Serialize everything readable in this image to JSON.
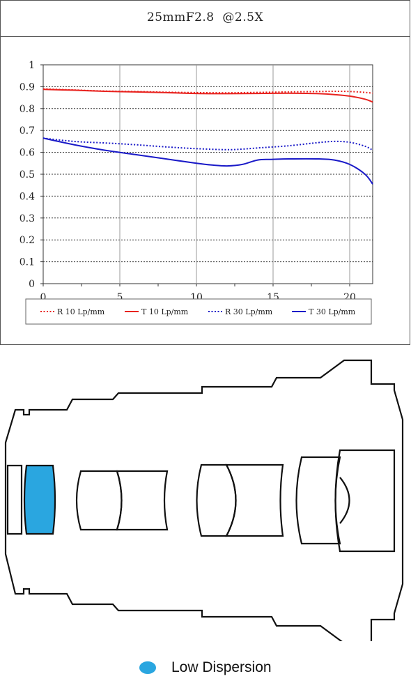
{
  "chart_data": {
    "type": "line",
    "title": "25mmF2.8  @2.5X",
    "xlim": [
      0,
      21.5
    ],
    "ylim": [
      0,
      1
    ],
    "x_ticks": [
      0,
      5,
      10,
      15,
      20
    ],
    "y_ticks": [
      0,
      0.1,
      0.2,
      0.3,
      0.4,
      0.5,
      0.6,
      0.7,
      0.8,
      0.9,
      1
    ],
    "y_tick_labels": [
      "0",
      "0.1",
      "0.2",
      "0.3",
      "0.4",
      "0.5",
      "0.6",
      "0.7",
      "0.8",
      "0.9",
      "1"
    ],
    "grid": true,
    "legend_position": "bottom",
    "series": [
      {
        "name": "R 10 Lp/mm",
        "color": "#e8231f",
        "style": "dotted",
        "x": [
          0,
          2,
          4,
          6,
          8,
          10,
          12,
          14,
          16,
          18,
          19,
          20,
          21,
          21.5
        ],
        "y": [
          0.89,
          0.885,
          0.88,
          0.878,
          0.875,
          0.873,
          0.872,
          0.874,
          0.876,
          0.878,
          0.879,
          0.878,
          0.874,
          0.87
        ]
      },
      {
        "name": "T 10 Lp/mm",
        "color": "#e8231f",
        "style": "solid",
        "x": [
          0,
          2,
          4,
          6,
          8,
          10,
          12,
          14,
          16,
          18,
          19,
          20,
          21,
          21.5
        ],
        "y": [
          0.888,
          0.884,
          0.879,
          0.876,
          0.873,
          0.869,
          0.868,
          0.869,
          0.87,
          0.868,
          0.864,
          0.857,
          0.843,
          0.83
        ]
      },
      {
        "name": "R 30 Lp/mm",
        "color": "#1a1ac8",
        "style": "dotted",
        "x": [
          0,
          2,
          4,
          6,
          8,
          10,
          12,
          13,
          14,
          16,
          18,
          19,
          20,
          21,
          21.5
        ],
        "y": [
          0.665,
          0.65,
          0.643,
          0.635,
          0.625,
          0.617,
          0.612,
          0.615,
          0.62,
          0.63,
          0.645,
          0.65,
          0.646,
          0.628,
          0.61
        ]
      },
      {
        "name": "T 30 Lp/mm",
        "color": "#1a1ac8",
        "style": "solid",
        "x": [
          0,
          2,
          4,
          6,
          8,
          10,
          11,
          12,
          13,
          14,
          15,
          16,
          18,
          19,
          20,
          21,
          21.5
        ],
        "y": [
          0.665,
          0.635,
          0.61,
          0.59,
          0.57,
          0.55,
          0.542,
          0.538,
          0.545,
          0.565,
          0.568,
          0.57,
          0.57,
          0.565,
          0.545,
          0.5,
          0.455
        ]
      }
    ]
  },
  "footer_legend": {
    "label": "Low Dispersion",
    "color": "#2aa6e0"
  }
}
